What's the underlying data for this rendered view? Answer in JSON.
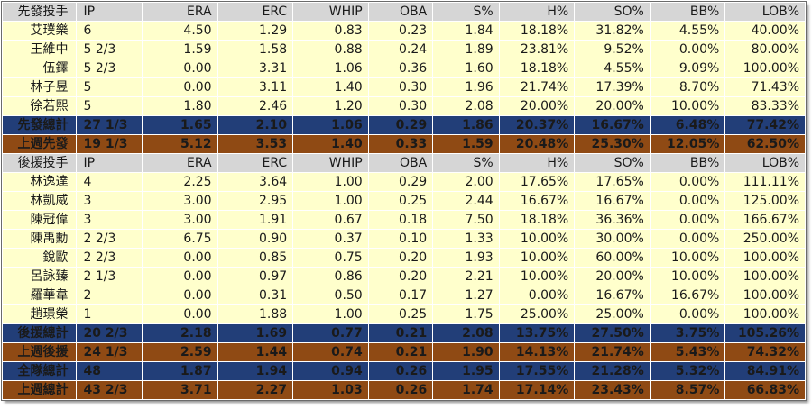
{
  "columns": [
    "IP",
    "ERA",
    "ERC",
    "WHIP",
    "OBA",
    "S%",
    "H%",
    "SO%",
    "BB%",
    "LOB%"
  ],
  "starters": {
    "header_label": "先發投手",
    "players": [
      {
        "name": "艾璞樂",
        "ip": "6",
        "era": "4.50",
        "erc": "1.29",
        "whip": "0.83",
        "oba": "0.23",
        "s": "1.84",
        "h": "18.18%",
        "so": "31.82%",
        "bb": "4.55%",
        "lob": "40.00%"
      },
      {
        "name": "王維中",
        "ip": "5 2/3",
        "era": "1.59",
        "erc": "1.58",
        "whip": "0.88",
        "oba": "0.24",
        "s": "1.89",
        "h": "23.81%",
        "so": "9.52%",
        "bb": "0.00%",
        "lob": "80.00%"
      },
      {
        "name": "伍鐸",
        "ip": "5 2/3",
        "era": "0.00",
        "erc": "3.31",
        "whip": "1.06",
        "oba": "0.36",
        "s": "1.60",
        "h": "18.18%",
        "so": "4.55%",
        "bb": "9.09%",
        "lob": "100.00%"
      },
      {
        "name": "林子昱",
        "ip": "5",
        "era": "0.00",
        "erc": "3.11",
        "whip": "1.40",
        "oba": "0.30",
        "s": "1.96",
        "h": "21.74%",
        "so": "17.39%",
        "bb": "8.70%",
        "lob": "71.43%"
      },
      {
        "name": "徐若熙",
        "ip": "5",
        "era": "1.80",
        "erc": "2.46",
        "whip": "1.20",
        "oba": "0.30",
        "s": "2.08",
        "h": "20.00%",
        "so": "20.00%",
        "bb": "10.00%",
        "lob": "83.33%"
      }
    ],
    "totals": [
      {
        "style": "blue",
        "name": "先發總計",
        "ip": "27 1/3",
        "era": "1.65",
        "erc": "2.10",
        "whip": "1.06",
        "oba": "0.29",
        "s": "1.86",
        "h": "20.37%",
        "so": "16.67%",
        "bb": "6.48%",
        "lob": "77.42%"
      },
      {
        "style": "brown",
        "name": "上週先發",
        "ip": "19 1/3",
        "era": "5.12",
        "erc": "3.53",
        "whip": "1.40",
        "oba": "0.33",
        "s": "1.59",
        "h": "20.48%",
        "so": "25.30%",
        "bb": "12.05%",
        "lob": "62.50%"
      }
    ]
  },
  "relievers": {
    "header_label": "後援投手",
    "players": [
      {
        "name": "林逸達",
        "ip": "4",
        "era": "2.25",
        "erc": "3.64",
        "whip": "1.00",
        "oba": "0.29",
        "s": "2.00",
        "h": "17.65%",
        "so": "17.65%",
        "bb": "0.00%",
        "lob": "111.11%"
      },
      {
        "name": "林凱威",
        "ip": "3",
        "era": "3.00",
        "erc": "2.95",
        "whip": "1.00",
        "oba": "0.25",
        "s": "2.44",
        "h": "16.67%",
        "so": "16.67%",
        "bb": "0.00%",
        "lob": "125.00%"
      },
      {
        "name": "陳冠偉",
        "ip": "3",
        "era": "3.00",
        "erc": "1.91",
        "whip": "0.67",
        "oba": "0.18",
        "s": "7.50",
        "h": "18.18%",
        "so": "36.36%",
        "bb": "0.00%",
        "lob": "166.67%"
      },
      {
        "name": "陳禹勳",
        "ip": "2 2/3",
        "era": "6.75",
        "erc": "0.90",
        "whip": "0.37",
        "oba": "0.10",
        "s": "1.33",
        "h": "10.00%",
        "so": "30.00%",
        "bb": "0.00%",
        "lob": "250.00%"
      },
      {
        "name": "銳歐",
        "ip": "2 2/3",
        "era": "0.00",
        "erc": "0.85",
        "whip": "0.75",
        "oba": "0.20",
        "s": "1.93",
        "h": "10.00%",
        "so": "60.00%",
        "bb": "10.00%",
        "lob": "100.00%"
      },
      {
        "name": "呂詠臻",
        "ip": "2 1/3",
        "era": "0.00",
        "erc": "0.97",
        "whip": "0.86",
        "oba": "0.20",
        "s": "2.21",
        "h": "10.00%",
        "so": "20.00%",
        "bb": "10.00%",
        "lob": "100.00%"
      },
      {
        "name": "羅華韋",
        "ip": "2",
        "era": "0.00",
        "erc": "0.31",
        "whip": "0.50",
        "oba": "0.17",
        "s": "1.27",
        "h": "0.00%",
        "so": "16.67%",
        "bb": "16.67%",
        "lob": "100.00%"
      },
      {
        "name": "趙璟榮",
        "ip": "1",
        "era": "0.00",
        "erc": "1.88",
        "whip": "1.00",
        "oba": "0.25",
        "s": "1.75",
        "h": "25.00%",
        "so": "25.00%",
        "bb": "0.00%",
        "lob": "100.00%"
      }
    ],
    "totals": [
      {
        "style": "blue",
        "name": "後援總計",
        "ip": "20 2/3",
        "era": "2.18",
        "erc": "1.69",
        "whip": "0.77",
        "oba": "0.21",
        "s": "2.08",
        "h": "13.75%",
        "so": "27.50%",
        "bb": "3.75%",
        "lob": "105.26%"
      },
      {
        "style": "brown",
        "name": "上週後援",
        "ip": "24 1/3",
        "era": "2.59",
        "erc": "1.44",
        "whip": "0.74",
        "oba": "0.21",
        "s": "1.90",
        "h": "14.13%",
        "so": "21.74%",
        "bb": "5.43%",
        "lob": "74.32%"
      },
      {
        "style": "blue",
        "name": "全隊總計",
        "ip": "48",
        "era": "1.87",
        "erc": "1.94",
        "whip": "0.94",
        "oba": "0.26",
        "s": "1.95",
        "h": "17.55%",
        "so": "21.28%",
        "bb": "5.32%",
        "lob": "84.91%"
      },
      {
        "style": "brown",
        "name": "上週總計",
        "ip": "43 2/3",
        "era": "3.71",
        "erc": "2.27",
        "whip": "1.03",
        "oba": "0.26",
        "s": "1.74",
        "h": "17.14%",
        "so": "23.43%",
        "bb": "8.57%",
        "lob": "66.83%"
      }
    ]
  },
  "colors": {
    "header_bg": "#d6d6d6",
    "player_bg": "#ffffcc",
    "total_blue": "#223e78",
    "total_brown": "#8f4a14"
  }
}
